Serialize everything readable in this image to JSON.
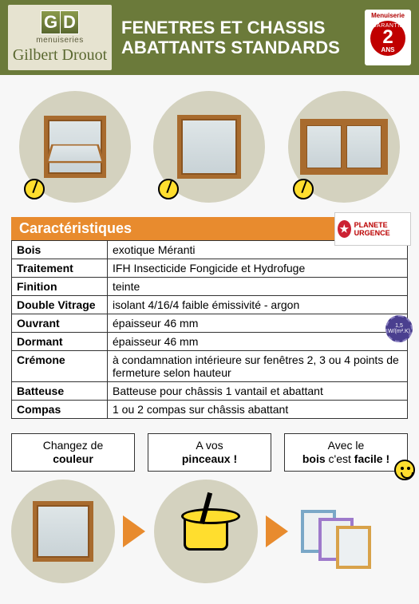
{
  "header": {
    "logo_g": "G",
    "logo_d": "D",
    "logo_sub": "menuiseries",
    "logo_name": "Gilbert Drouot",
    "title_line1": "FENETRES ET CHASSIS",
    "title_line2": "ABATTANTS STANDARDS",
    "warranty_top": "Menuiserie",
    "warranty_g": "GARANTIE",
    "warranty_num": "2",
    "warranty_ans": "ANS"
  },
  "characteristics": {
    "heading": "Caractéristiques",
    "planete_label": "PLANETE URGENCE",
    "rows": [
      {
        "k": "Bois",
        "v": "exotique Méranti"
      },
      {
        "k": "Traitement",
        "v": "IFH Insecticide Fongicide et Hydrofuge"
      },
      {
        "k": "Finition",
        "v": "teinte"
      },
      {
        "k": "Double Vitrage",
        "v": "isolant 4/16/4 faible émissivité - argon"
      },
      {
        "k": "Ouvrant",
        "v": "épaisseur 46 mm"
      },
      {
        "k": "Dormant",
        "v": "épaisseur 46 mm"
      },
      {
        "k": "Crémone",
        "v": "à condamnation intérieure sur fenêtres 2, 3 ou 4 points de fermeture selon hauteur"
      },
      {
        "k": "Batteuse",
        "v": "Batteuse pour châssis 1 vantail et abattant"
      },
      {
        "k": "Compas",
        "v": "1 ou 2 compas sur châssis abattant"
      }
    ],
    "cert_badge": "1,5 W/(m².K)"
  },
  "callouts": {
    "c1_l1": "Changez de",
    "c1_l2": "couleur",
    "c2_l1": "A vos",
    "c2_l2": "pinceaux !",
    "c3_l1": "Avec le",
    "c3_l2a": "bois",
    "c3_l2b": " c'est ",
    "c3_l2c": "facile !"
  },
  "colors": {
    "header_bg": "#6b7a3a",
    "accent": "#e88b2e",
    "circle_bg": "#d4d2bf",
    "wood": "#a86b2e"
  }
}
